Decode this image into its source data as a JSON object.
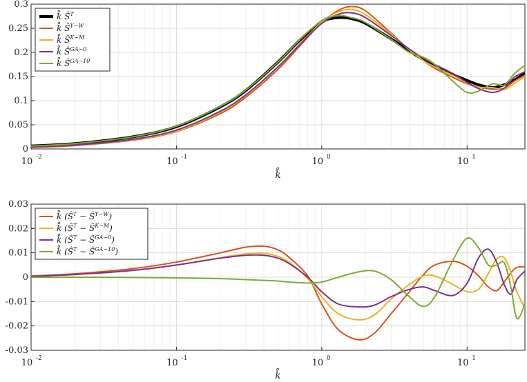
{
  "chart_data": [
    {
      "type": "line",
      "title": "",
      "xlabel": "k̊",
      "ylabel": "",
      "xscale": "log",
      "xlim": [
        0.01,
        25
      ],
      "ylim": [
        0,
        0.3
      ],
      "yticks": [
        "0",
        "0.05",
        "0.1",
        "0.15",
        "0.2",
        "0.25",
        "0.3"
      ],
      "xticks": [
        {
          "base": "10",
          "exp": "-2"
        },
        {
          "base": "10",
          "exp": "-1"
        },
        {
          "base": "10",
          "exp": "0"
        },
        {
          "base": "10",
          "exp": "1"
        }
      ],
      "grid": true,
      "legend_position": "top-left",
      "series": [
        {
          "name": "k̊ Ŝ",
          "sup": "T",
          "color": "#000000",
          "width": 4,
          "x": [
            0.01,
            0.02,
            0.05,
            0.1,
            0.2,
            0.3,
            0.5,
            0.7,
            1.0,
            1.3,
            1.6,
            2.0,
            3.0,
            4.0,
            5.0,
            6.0,
            8.0,
            10,
            12,
            15,
            18,
            21,
            25
          ],
          "y": [
            0.006,
            0.011,
            0.025,
            0.046,
            0.087,
            0.121,
            0.18,
            0.224,
            0.263,
            0.272,
            0.27,
            0.26,
            0.228,
            0.203,
            0.185,
            0.172,
            0.154,
            0.142,
            0.133,
            0.127,
            0.133,
            0.142,
            0.157
          ]
        },
        {
          "name": "k̊ Ŝ",
          "sup": "Y−W",
          "color": "#d95319",
          "width": 2,
          "x": [
            0.01,
            0.02,
            0.05,
            0.1,
            0.2,
            0.3,
            0.5,
            0.7,
            1.0,
            1.3,
            1.6,
            2.0,
            3.0,
            4.0,
            5.0,
            6.0,
            8.0,
            10,
            12,
            15,
            18,
            21,
            25
          ],
          "y": [
            0.003,
            0.007,
            0.018,
            0.036,
            0.073,
            0.107,
            0.165,
            0.212,
            0.262,
            0.287,
            0.295,
            0.286,
            0.24,
            0.205,
            0.183,
            0.167,
            0.148,
            0.135,
            0.128,
            0.124,
            0.126,
            0.14,
            0.153
          ]
        },
        {
          "name": "k̊ Ŝ",
          "sup": "K−M",
          "color": "#edb120",
          "width": 2,
          "x": [
            0.01,
            0.02,
            0.05,
            0.1,
            0.2,
            0.3,
            0.5,
            0.7,
            1.0,
            1.3,
            1.6,
            2.0,
            3.0,
            4.0,
            5.0,
            6.0,
            8.0,
            10,
            12,
            15,
            18,
            21,
            25
          ],
          "y": [
            0.004,
            0.008,
            0.019,
            0.037,
            0.076,
            0.111,
            0.17,
            0.216,
            0.263,
            0.284,
            0.289,
            0.278,
            0.238,
            0.205,
            0.183,
            0.17,
            0.152,
            0.137,
            0.128,
            0.127,
            0.123,
            0.135,
            0.15
          ]
        },
        {
          "name": "k̊ Ŝ",
          "sup": "GA−0",
          "color": "#7e2f8e",
          "width": 2,
          "x": [
            0.01,
            0.02,
            0.05,
            0.1,
            0.2,
            0.3,
            0.5,
            0.7,
            1.0,
            1.3,
            1.6,
            2.0,
            3.0,
            4.0,
            5.0,
            6.0,
            8.0,
            10,
            12,
            15,
            18,
            21,
            25
          ],
          "y": [
            0.004,
            0.008,
            0.02,
            0.039,
            0.078,
            0.112,
            0.17,
            0.215,
            0.26,
            0.279,
            0.282,
            0.272,
            0.235,
            0.207,
            0.188,
            0.175,
            0.156,
            0.138,
            0.125,
            0.117,
            0.126,
            0.148,
            0.16
          ]
        },
        {
          "name": "k̊ Ŝ",
          "sup": "GA−10",
          "color": "#77ac30",
          "width": 2,
          "x": [
            0.01,
            0.02,
            0.05,
            0.1,
            0.2,
            0.3,
            0.5,
            0.7,
            1.0,
            1.3,
            1.6,
            2.0,
            3.0,
            4.0,
            5.0,
            6.0,
            8.0,
            10,
            12,
            15,
            18,
            21,
            25
          ],
          "y": [
            0.006,
            0.011,
            0.025,
            0.047,
            0.088,
            0.122,
            0.18,
            0.225,
            0.266,
            0.276,
            0.272,
            0.262,
            0.227,
            0.2,
            0.19,
            0.175,
            0.14,
            0.117,
            0.12,
            0.135,
            0.132,
            0.155,
            0.173
          ]
        }
      ]
    },
    {
      "type": "line",
      "title": "",
      "xlabel": "k̊",
      "ylabel": "",
      "xscale": "log",
      "xlim": [
        0.01,
        25
      ],
      "ylim": [
        -0.03,
        0.03
      ],
      "yticks": [
        "-0.03",
        "-0.02",
        "-0.01",
        "0",
        "0.01",
        "0.02",
        "0.03"
      ],
      "xticks": [
        {
          "base": "10",
          "exp": "-2"
        },
        {
          "base": "10",
          "exp": "-1"
        },
        {
          "base": "10",
          "exp": "0"
        },
        {
          "base": "10",
          "exp": "1"
        }
      ],
      "grid": true,
      "legend_position": "top-left",
      "series": [
        {
          "name": "k̊ (Ŝ",
          "sup1": "T",
          "mid": " − Ŝ",
          "sup2": "Y−W",
          "end": ")",
          "color": "#d95319",
          "width": 2,
          "x": [
            0.01,
            0.02,
            0.05,
            0.1,
            0.2,
            0.3,
            0.4,
            0.5,
            0.6,
            0.8,
            1.0,
            1.3,
            1.8,
            2.3,
            3.0,
            4.0,
            5.0,
            6.0,
            8.0,
            10,
            12,
            14,
            16,
            18,
            20,
            22,
            25
          ],
          "y": [
            0.0005,
            0.0014,
            0.0035,
            0.0062,
            0.01,
            0.0123,
            0.0127,
            0.0112,
            0.008,
            0.0005,
            -0.011,
            -0.0215,
            -0.0257,
            -0.023,
            -0.015,
            -0.006,
            0.001,
            0.005,
            0.0065,
            0.0045,
            0.0005,
            -0.004,
            -0.0055,
            -0.002,
            0.0018,
            0.004,
            0.0043
          ]
        },
        {
          "name": "k̊ (Ŝ",
          "sup1": "T",
          "mid": " − Ŝ",
          "sup2": "K−M",
          "end": ")",
          "color": "#edb120",
          "width": 2,
          "x": [
            0.01,
            0.02,
            0.05,
            0.1,
            0.2,
            0.3,
            0.4,
            0.5,
            0.6,
            0.8,
            1.0,
            1.3,
            1.8,
            2.3,
            3.0,
            4.0,
            5.0,
            6.0,
            8.0,
            10,
            12,
            14,
            16,
            18,
            20,
            22,
            25
          ],
          "y": [
            0.0004,
            0.0011,
            0.0028,
            0.005,
            0.008,
            0.0096,
            0.0098,
            0.0085,
            0.006,
            -0.0005,
            -0.008,
            -0.015,
            -0.0175,
            -0.0155,
            -0.009,
            -0.003,
            0.0005,
            0.0005,
            -0.003,
            -0.006,
            -0.005,
            0.0015,
            0.0075,
            0.008,
            0.002,
            -0.006,
            -0.0125
          ]
        },
        {
          "name": "k̊ (Ŝ",
          "sup1": "T",
          "mid": " − Ŝ",
          "sup2": "GA−0",
          "end": ")",
          "color": "#7e2f8e",
          "width": 2,
          "x": [
            0.01,
            0.02,
            0.05,
            0.1,
            0.2,
            0.3,
            0.4,
            0.5,
            0.6,
            0.8,
            1.0,
            1.3,
            1.8,
            2.3,
            3.0,
            4.0,
            5.0,
            6.0,
            8.0,
            10,
            12,
            14,
            16,
            18,
            20,
            22,
            25
          ],
          "y": [
            0.0004,
            0.0011,
            0.0028,
            0.005,
            0.0078,
            0.009,
            0.009,
            0.0078,
            0.0055,
            0.0,
            -0.006,
            -0.011,
            -0.0122,
            -0.0115,
            -0.008,
            -0.005,
            -0.004,
            -0.0055,
            -0.0075,
            -0.0025,
            0.008,
            0.0115,
            0.006,
            -0.003,
            -0.007,
            -0.001,
            0.0025
          ]
        },
        {
          "name": "k̊ (Ŝ",
          "sup1": "T",
          "mid": " − Ŝ",
          "sup2": "GA−10",
          "end": ")",
          "color": "#77ac30",
          "width": 2,
          "x": [
            0.01,
            0.02,
            0.05,
            0.1,
            0.2,
            0.3,
            0.4,
            0.5,
            0.6,
            0.8,
            1.0,
            1.3,
            1.8,
            2.3,
            3.0,
            4.0,
            5.0,
            6.0,
            8.0,
            10,
            12,
            14,
            16,
            18,
            20,
            22,
            25
          ],
          "y": [
            0.0,
            0.0,
            -0.0001,
            -0.0003,
            -0.0006,
            -0.001,
            -0.0013,
            -0.0016,
            -0.002,
            -0.0024,
            -0.002,
            0.0,
            0.0022,
            0.0025,
            -0.001,
            -0.008,
            -0.012,
            -0.008,
            0.007,
            0.016,
            0.012,
            0.005,
            0.005,
            0.006,
            -0.004,
            -0.017,
            -0.011
          ]
        }
      ]
    }
  ]
}
